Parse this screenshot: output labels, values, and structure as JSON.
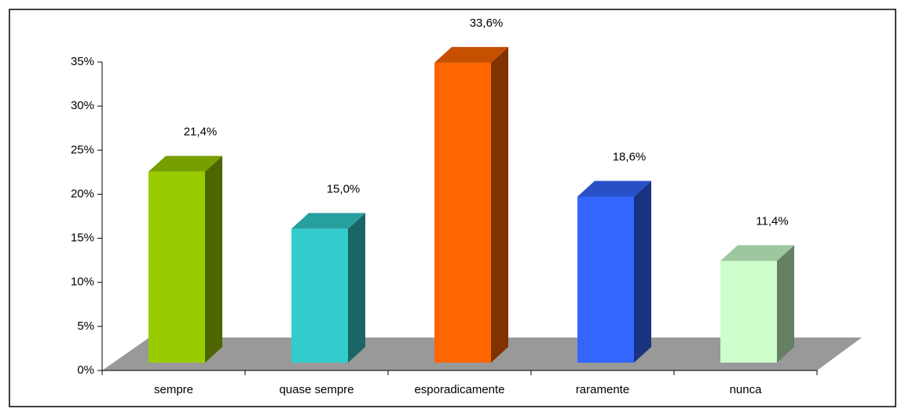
{
  "chart_data": {
    "type": "bar3d",
    "categories": [
      "sempre",
      "quase sempre",
      "esporadicamente",
      "raramente",
      "nunca"
    ],
    "values": [
      21.4,
      15.0,
      33.6,
      18.6,
      11.4
    ],
    "value_labels": [
      "21,4%",
      "15,0%",
      "33,6%",
      "18,6%",
      "11,4%"
    ],
    "colors": [
      "#99cc00",
      "#33cccc",
      "#ff6600",
      "#3366ff",
      "#ccffcc"
    ],
    "ylim": [
      0,
      35
    ],
    "yticks": [
      {
        "value": 0,
        "label": "0%"
      },
      {
        "value": 5,
        "label": "5%"
      },
      {
        "value": 10,
        "label": "10%"
      },
      {
        "value": 15,
        "label": "15%"
      },
      {
        "value": 20,
        "label": "20%"
      },
      {
        "value": 25,
        "label": "25%"
      },
      {
        "value": 30,
        "label": "30%"
      },
      {
        "value": 35,
        "label": "35%"
      }
    ]
  }
}
